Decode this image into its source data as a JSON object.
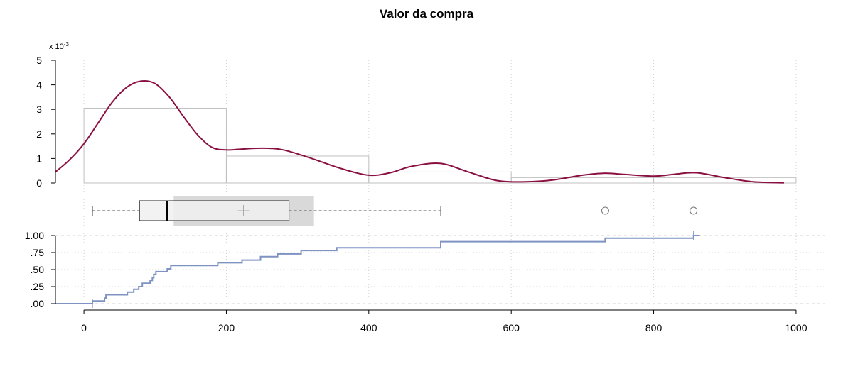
{
  "chart_data": {
    "type": "histogram-density-boxplot-ecdf",
    "title": "Valor da compra",
    "y_multiplier_label": "x 10",
    "y_multiplier_exp": "-3",
    "colors": {
      "density": "#8b1042",
      "ecdf": "#7f93c2",
      "hist_border": "#c0c0c0",
      "box_fill": "#f0f0f0",
      "ci_band": "#d9d9d9",
      "grid": "#d3d3d3"
    },
    "x_axis": {
      "range": [
        -40,
        1040
      ],
      "ticks": [
        0,
        200,
        400,
        600,
        800,
        1000
      ],
      "tick_labels": [
        "0",
        "200",
        "400",
        "600",
        "800",
        "1000"
      ]
    },
    "histogram": {
      "y_ticks": [
        0,
        1,
        2,
        3,
        4,
        5
      ],
      "y_tick_labels": [
        "0",
        "1",
        "2",
        "3",
        "4",
        "5"
      ],
      "ylim": [
        0,
        5
      ],
      "bins": [
        {
          "from": 0,
          "to": 200,
          "density": 3.05
        },
        {
          "from": 200,
          "to": 400,
          "density": 1.1
        },
        {
          "from": 400,
          "to": 600,
          "density": 0.45
        },
        {
          "from": 600,
          "to": 800,
          "density": 0.22
        },
        {
          "from": 800,
          "to": 1000,
          "density": 0.22
        }
      ]
    },
    "density": {
      "x": [
        -40,
        -20,
        0,
        20,
        40,
        60,
        80,
        100,
        120,
        140,
        160,
        180,
        200,
        220,
        250,
        280,
        320,
        360,
        400,
        430,
        460,
        500,
        540,
        580,
        620,
        660,
        700,
        730,
        760,
        800,
        830,
        860,
        900,
        940,
        983
      ],
      "y": [
        0.45,
        0.95,
        1.6,
        2.45,
        3.3,
        3.9,
        4.15,
        4.05,
        3.5,
        2.7,
        1.95,
        1.45,
        1.35,
        1.38,
        1.42,
        1.35,
        1.0,
        0.6,
        0.32,
        0.42,
        0.68,
        0.8,
        0.45,
        0.1,
        0.05,
        0.13,
        0.32,
        0.4,
        0.35,
        0.28,
        0.36,
        0.42,
        0.22,
        0.05,
        0.01
      ]
    },
    "boxplot": {
      "whisker_low": 12,
      "q1": 78,
      "median": 117,
      "q3": 288,
      "whisker_high": 501,
      "mean": 224,
      "ci": [
        126,
        323
      ],
      "outliers": [
        732,
        856
      ]
    },
    "ecdf": {
      "y_ticks": [
        0,
        0.25,
        0.5,
        0.75,
        1.0
      ],
      "y_tick_labels": [
        ".00",
        ".25",
        ".50",
        ".75",
        "1.00"
      ],
      "ylim": [
        0,
        1
      ],
      "steps": [
        [
          12,
          0.04
        ],
        [
          29,
          0.08
        ],
        [
          31,
          0.13
        ],
        [
          61,
          0.17
        ],
        [
          70,
          0.21
        ],
        [
          77,
          0.25
        ],
        [
          82,
          0.3
        ],
        [
          93,
          0.34
        ],
        [
          96,
          0.38
        ],
        [
          98,
          0.43
        ],
        [
          101,
          0.47
        ],
        [
          117,
          0.51
        ],
        [
          122,
          0.56
        ],
        [
          188,
          0.6
        ],
        [
          222,
          0.64
        ],
        [
          248,
          0.69
        ],
        [
          272,
          0.73
        ],
        [
          305,
          0.78
        ],
        [
          355,
          0.82
        ],
        [
          501,
          0.91
        ],
        [
          732,
          0.96
        ],
        [
          856,
          1.0
        ]
      ]
    }
  }
}
